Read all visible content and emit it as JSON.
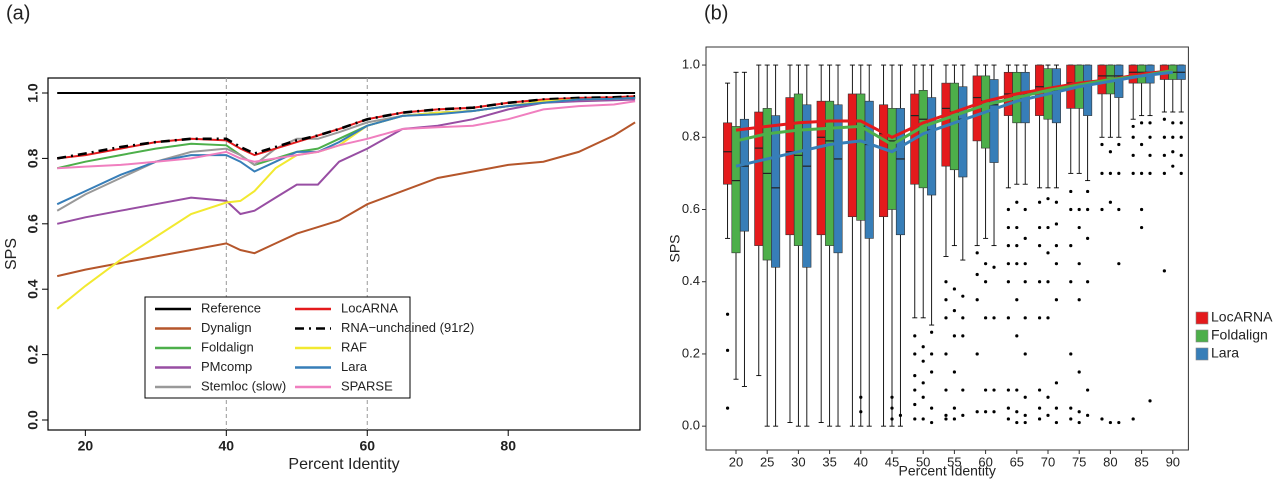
{
  "chart_data": [
    {
      "type": "line",
      "panel_label": "(a)",
      "xlabel": "Percent Identity",
      "ylabel": "SPS",
      "xlim": [
        14.7,
        98.7
      ],
      "ylim": [
        -0.0306,
        1.0459
      ],
      "xticks": [
        20,
        40,
        60,
        80
      ],
      "yticks": [
        {
          "value": 0,
          "label": "0.0"
        },
        0.2,
        0.4,
        0.6,
        0.8,
        {
          "value": 1,
          "label": "1.0"
        }
      ],
      "reference_lines_x": [
        40,
        60
      ],
      "legend": "bottom center",
      "x": [
        16,
        20,
        25,
        30,
        35,
        40,
        42,
        44,
        47,
        50,
        53,
        56,
        60,
        65,
        70,
        75,
        80,
        85,
        90,
        95,
        98
      ],
      "series": [
        {
          "name": "Reference",
          "color": "#000000",
          "values": [
            1,
            1,
            1,
            1,
            1,
            1,
            1,
            1,
            1,
            1,
            1,
            1,
            1,
            1,
            1,
            1,
            1,
            1,
            1,
            1,
            1
          ]
        },
        {
          "name": "Dynalign",
          "color": "#b5562b",
          "values": [
            0.44,
            0.46,
            0.48,
            0.5,
            0.52,
            0.54,
            0.52,
            0.51,
            0.54,
            0.57,
            0.59,
            0.61,
            0.66,
            0.7,
            0.74,
            0.76,
            0.78,
            0.79,
            0.82,
            0.87,
            0.91
          ]
        },
        {
          "name": "Foldalign",
          "color": "#4daf4a",
          "values": [
            0.77,
            0.79,
            0.81,
            0.83,
            0.845,
            0.84,
            0.81,
            0.78,
            0.8,
            0.82,
            0.83,
            0.86,
            0.9,
            0.93,
            0.94,
            0.945,
            0.96,
            0.975,
            0.98,
            0.982,
            0.985
          ]
        },
        {
          "name": "PMcomp",
          "color": "#984ea3",
          "values": [
            0.6,
            0.62,
            0.64,
            0.66,
            0.68,
            0.67,
            0.63,
            0.64,
            0.68,
            0.72,
            0.72,
            0.79,
            0.83,
            0.89,
            0.9,
            0.92,
            0.95,
            0.97,
            0.975,
            0.978,
            0.98
          ]
        },
        {
          "name": "Stemloc (slow)",
          "color": "#999999",
          "values": [
            0.64,
            0.69,
            0.74,
            0.79,
            0.82,
            0.83,
            0.81,
            0.78,
            0.83,
            0.86,
            0.86,
            0.88,
            0.91,
            0.93,
            0.94,
            0.945,
            0.96,
            0.97,
            0.98,
            0.982,
            0.985
          ]
        },
        {
          "name": "LocARNA",
          "color": "#e41a1c",
          "values": [
            0.8,
            0.81,
            0.83,
            0.85,
            0.86,
            0.855,
            0.83,
            0.81,
            0.83,
            0.85,
            0.87,
            0.89,
            0.92,
            0.94,
            0.95,
            0.955,
            0.97,
            0.98,
            0.985,
            0.987,
            0.99
          ]
        },
        {
          "name": "RNA−unchained (91r2)",
          "color": "#000000",
          "dash": true,
          "values": [
            0.8,
            0.815,
            0.835,
            0.85,
            0.86,
            0.86,
            0.835,
            0.815,
            0.835,
            0.855,
            0.87,
            0.89,
            0.92,
            0.94,
            0.95,
            0.955,
            0.97,
            0.98,
            0.985,
            0.987,
            0.99
          ]
        },
        {
          "name": "RAF",
          "color": "#f2e930",
          "values": [
            0.34,
            0.41,
            0.49,
            0.56,
            0.63,
            0.665,
            0.67,
            0.7,
            0.77,
            0.81,
            0.82,
            0.84,
            0.9,
            0.93,
            0.94,
            0.945,
            0.96,
            0.975,
            0.98,
            0.982,
            0.985
          ]
        },
        {
          "name": "Lara",
          "color": "#377eb8",
          "values": [
            0.66,
            0.7,
            0.75,
            0.79,
            0.81,
            0.81,
            0.79,
            0.76,
            0.79,
            0.82,
            0.82,
            0.85,
            0.9,
            0.93,
            0.935,
            0.945,
            0.96,
            0.97,
            0.98,
            0.982,
            0.985
          ]
        },
        {
          "name": "SPARSE",
          "color": "#f07fbf",
          "values": [
            0.77,
            0.775,
            0.78,
            0.79,
            0.8,
            0.82,
            0.8,
            0.79,
            0.8,
            0.81,
            0.82,
            0.84,
            0.86,
            0.89,
            0.895,
            0.9,
            0.92,
            0.95,
            0.96,
            0.965,
            0.975
          ]
        }
      ]
    },
    {
      "type": "box",
      "panel_label": "(b)",
      "xlabel": "Percent Identity",
      "ylabel": "SPS",
      "ylim": [
        -0.066,
        1.05
      ],
      "yticks": [
        {
          "value": 0,
          "label": "0.0"
        },
        0.2,
        0.4,
        0.6,
        0.8,
        {
          "value": 1,
          "label": "1.0"
        }
      ],
      "legend": "right",
      "categories": [
        "20",
        "25",
        "30",
        "35",
        "40",
        "45",
        "50",
        "55",
        "60",
        "65",
        "70",
        "75",
        "80",
        "85",
        "90"
      ],
      "series": [
        {
          "name": "LocARNA",
          "color": "#e41a1c",
          "line_color": "#e41a1c",
          "trend": [
            0.82,
            0.83,
            0.84,
            0.845,
            0.845,
            0.8,
            0.84,
            0.87,
            0.9,
            0.92,
            0.935,
            0.95,
            0.96,
            0.975,
            0.985
          ],
          "boxes": [
            {
              "lo": 0.52,
              "q1": 0.67,
              "med": 0.76,
              "q3": 0.84,
              "hi": 0.95
            },
            {
              "lo": 0.14,
              "q1": 0.5,
              "med": 0.77,
              "q3": 0.87,
              "hi": 1.0
            },
            {
              "lo": 0.01,
              "q1": 0.53,
              "med": 0.76,
              "q3": 0.91,
              "hi": 1.0
            },
            {
              "lo": 0.01,
              "q1": 0.53,
              "med": 0.8,
              "q3": 0.9,
              "hi": 1.0
            },
            {
              "lo": 0.0,
              "q1": 0.58,
              "med": 0.83,
              "q3": 0.92,
              "hi": 1.0
            },
            {
              "lo": 0.0,
              "q1": 0.58,
              "med": 0.81,
              "q3": 0.89,
              "hi": 1.0
            },
            {
              "lo": 0.3,
              "q1": 0.67,
              "med": 0.86,
              "q3": 0.92,
              "hi": 1.0
            },
            {
              "lo": 0.47,
              "q1": 0.72,
              "med": 0.88,
              "q3": 0.95,
              "hi": 1.0
            },
            {
              "lo": 0.5,
              "q1": 0.79,
              "med": 0.91,
              "q3": 0.97,
              "hi": 1.0
            },
            {
              "lo": 0.66,
              "q1": 0.86,
              "med": 0.92,
              "q3": 0.98,
              "hi": 1.0
            },
            {
              "lo": 0.66,
              "q1": 0.86,
              "med": 0.94,
              "q3": 1.0,
              "hi": 1.0
            },
            {
              "lo": 0.7,
              "q1": 0.88,
              "med": 0.95,
              "q3": 1.0,
              "hi": 1.0
            },
            {
              "lo": 0.8,
              "q1": 0.92,
              "med": 0.97,
              "q3": 1.0,
              "hi": 1.0
            },
            {
              "lo": 0.85,
              "q1": 0.95,
              "med": 0.98,
              "q3": 1.0,
              "hi": 1.0
            },
            {
              "lo": 0.87,
              "q1": 0.96,
              "med": 0.98,
              "q3": 1.0,
              "hi": 1.0
            }
          ],
          "outliers": [
            [
              0.31,
              0.21,
              0.05
            ],
            [],
            [],
            [],
            [],
            [],
            [
              0.25,
              0.2,
              0.14,
              0.1,
              0.06,
              0.02
            ],
            [
              0.4,
              0.35,
              0.3,
              0.2,
              0.1,
              0.03,
              0.02
            ],
            [
              0.48,
              0.42,
              0.35,
              0.2,
              0.04
            ],
            [
              0.6,
              0.55,
              0.5,
              0.45,
              0.4,
              0.3,
              0.1,
              0.05,
              0.02
            ],
            [
              0.62,
              0.55,
              0.5,
              0.4,
              0.3,
              0.1,
              0.05,
              0.02
            ],
            [
              0.65,
              0.6,
              0.5,
              0.4,
              0.2,
              0.05,
              0.02
            ],
            [
              0.78,
              0.7,
              0.6,
              0.02
            ],
            [
              0.83,
              0.8,
              0.75,
              0.7,
              0.02
            ],
            [
              0.85,
              0.8,
              0.75,
              0.7,
              0.43
            ]
          ]
        },
        {
          "name": "Foldalign",
          "color": "#4daf4a",
          "line_color": "#4daf4a",
          "trend": [
            0.79,
            0.81,
            0.82,
            0.825,
            0.83,
            0.78,
            0.83,
            0.86,
            0.89,
            0.91,
            0.93,
            0.945,
            0.96,
            0.97,
            0.985
          ],
          "boxes": [
            {
              "lo": 0.13,
              "q1": 0.48,
              "med": 0.68,
              "q3": 0.83,
              "hi": 0.98
            },
            {
              "lo": 0.0,
              "q1": 0.46,
              "med": 0.7,
              "q3": 0.88,
              "hi": 1.0
            },
            {
              "lo": 0.0,
              "q1": 0.5,
              "med": 0.75,
              "q3": 0.92,
              "hi": 1.0
            },
            {
              "lo": 0.0,
              "q1": 0.5,
              "med": 0.79,
              "q3": 0.9,
              "hi": 1.0
            },
            {
              "lo": 0.0,
              "q1": 0.57,
              "med": 0.83,
              "q3": 0.92,
              "hi": 1.0
            },
            {
              "lo": 0.0,
              "q1": 0.6,
              "med": 0.79,
              "q3": 0.88,
              "hi": 1.0
            },
            {
              "lo": 0.3,
              "q1": 0.66,
              "med": 0.85,
              "q3": 0.93,
              "hi": 1.0
            },
            {
              "lo": 0.5,
              "q1": 0.71,
              "med": 0.87,
              "q3": 0.95,
              "hi": 1.0
            },
            {
              "lo": 0.52,
              "q1": 0.77,
              "med": 0.9,
              "q3": 0.97,
              "hi": 1.0
            },
            {
              "lo": 0.67,
              "q1": 0.84,
              "med": 0.92,
              "q3": 0.98,
              "hi": 1.0
            },
            {
              "lo": 0.66,
              "q1": 0.85,
              "med": 0.93,
              "q3": 0.99,
              "hi": 1.0
            },
            {
              "lo": 0.7,
              "q1": 0.88,
              "med": 0.95,
              "q3": 1.0,
              "hi": 1.0
            },
            {
              "lo": 0.8,
              "q1": 0.92,
              "med": 0.97,
              "q3": 1.0,
              "hi": 1.0
            },
            {
              "lo": 0.86,
              "q1": 0.95,
              "med": 0.98,
              "q3": 1.0,
              "hi": 1.0
            },
            {
              "lo": 0.87,
              "q1": 0.96,
              "med": 0.98,
              "q3": 1.0,
              "hi": 1.0
            }
          ],
          "outliers": [
            [],
            [],
            [],
            [],
            [
              0.08,
              0.04
            ],
            [
              0.08,
              0.05,
              0.02
            ],
            [
              0.22,
              0.18,
              0.12,
              0.08,
              0.02
            ],
            [
              0.38,
              0.32,
              0.25,
              0.15,
              0.05,
              0.02
            ],
            [
              0.45,
              0.4,
              0.3,
              0.1,
              0.04
            ],
            [
              0.62,
              0.55,
              0.5,
              0.45,
              0.35,
              0.25,
              0.1,
              0.04,
              0.01
            ],
            [
              0.63,
              0.55,
              0.48,
              0.4,
              0.3,
              0.08,
              0.03
            ],
            [
              0.6,
              0.55,
              0.45,
              0.35,
              0.15,
              0.04,
              0.01
            ],
            [
              0.76,
              0.7,
              0.62,
              0.01
            ],
            [
              0.84,
              0.78,
              0.7,
              0.6,
              0.55
            ],
            [
              0.84,
              0.8,
              0.76,
              0.72
            ]
          ]
        },
        {
          "name": "Lara",
          "color": "#377eb8",
          "line_color": "#377eb8",
          "trend": [
            0.72,
            0.74,
            0.76,
            0.78,
            0.79,
            0.76,
            0.81,
            0.84,
            0.87,
            0.9,
            0.92,
            0.94,
            0.955,
            0.97,
            0.98
          ],
          "boxes": [
            {
              "lo": 0.11,
              "q1": 0.54,
              "med": 0.72,
              "q3": 0.85,
              "hi": 0.98
            },
            {
              "lo": 0.0,
              "q1": 0.44,
              "med": 0.66,
              "q3": 0.86,
              "hi": 1.0
            },
            {
              "lo": 0.0,
              "q1": 0.44,
              "med": 0.72,
              "q3": 0.89,
              "hi": 1.0
            },
            {
              "lo": 0.0,
              "q1": 0.48,
              "med": 0.74,
              "q3": 0.89,
              "hi": 1.0
            },
            {
              "lo": 0.0,
              "q1": 0.52,
              "med": 0.78,
              "q3": 0.9,
              "hi": 1.0
            },
            {
              "lo": 0.0,
              "q1": 0.53,
              "med": 0.74,
              "q3": 0.88,
              "hi": 1.0
            },
            {
              "lo": 0.28,
              "q1": 0.64,
              "med": 0.82,
              "q3": 0.91,
              "hi": 1.0
            },
            {
              "lo": 0.46,
              "q1": 0.69,
              "med": 0.85,
              "q3": 0.94,
              "hi": 1.0
            },
            {
              "lo": 0.5,
              "q1": 0.73,
              "med": 0.89,
              "q3": 0.96,
              "hi": 1.0
            },
            {
              "lo": 0.67,
              "q1": 0.84,
              "med": 0.92,
              "q3": 0.98,
              "hi": 1.0
            },
            {
              "lo": 0.66,
              "q1": 0.84,
              "med": 0.93,
              "q3": 0.99,
              "hi": 1.0
            },
            {
              "lo": 0.68,
              "q1": 0.86,
              "med": 0.95,
              "q3": 1.0,
              "hi": 1.0
            },
            {
              "lo": 0.8,
              "q1": 0.91,
              "med": 0.97,
              "q3": 1.0,
              "hi": 1.0
            },
            {
              "lo": 0.86,
              "q1": 0.95,
              "med": 0.98,
              "q3": 1.0,
              "hi": 1.0
            },
            {
              "lo": 0.87,
              "q1": 0.96,
              "med": 0.98,
              "q3": 1.0,
              "hi": 1.0
            }
          ],
          "outliers": [
            [],
            [],
            [],
            [],
            [],
            [
              0.03
            ],
            [
              0.26,
              0.2,
              0.15,
              0.05,
              0.01
            ],
            [
              0.36,
              0.3,
              0.25,
              0.1,
              0.03
            ],
            [
              0.44,
              0.3,
              0.1,
              0.04
            ],
            [
              0.6,
              0.52,
              0.45,
              0.4,
              0.3,
              0.2,
              0.08,
              0.03,
              0.01
            ],
            [
              0.62,
              0.56,
              0.5,
              0.45,
              0.35,
              0.12,
              0.05,
              0.01
            ],
            [
              0.65,
              0.6,
              0.52,
              0.4,
              0.1,
              0.03
            ],
            [
              0.78,
              0.7,
              0.6,
              0.45,
              0.01
            ],
            [
              0.84,
              0.8,
              0.75,
              0.7,
              0.07
            ],
            [
              0.84,
              0.8,
              0.75,
              0.7
            ]
          ]
        }
      ]
    }
  ]
}
